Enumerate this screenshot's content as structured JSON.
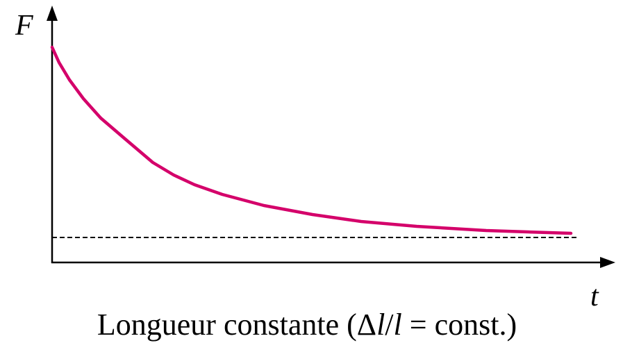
{
  "axes": {
    "y_label": "F",
    "x_label": "t"
  },
  "caption": [
    "Longueur constante (Δ",
    "l",
    "/",
    "l",
    " = const.)"
  ]
}
